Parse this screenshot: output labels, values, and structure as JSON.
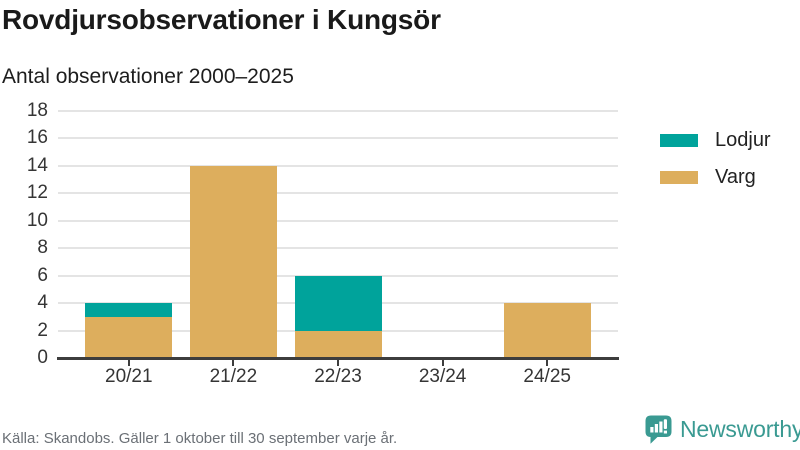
{
  "header": {
    "title": "Rovdjursobservationer i Kungsör",
    "subtitle": "Antal observationer 2000–2025"
  },
  "chart_data": {
    "type": "bar",
    "stacked": true,
    "title": "Rovdjursobservationer i Kungsör",
    "subtitle": "Antal observationer 2000–2025",
    "xlabel": "",
    "ylabel": "",
    "categories": [
      "20/21",
      "21/22",
      "22/23",
      "23/24",
      "24/25"
    ],
    "series": [
      {
        "name": "Varg",
        "color": "#ddae5d",
        "values": [
          3,
          14,
          2,
          0,
          4
        ]
      },
      {
        "name": "Lodjur",
        "color": "#00a39b",
        "values": [
          1,
          0,
          4,
          0,
          0
        ]
      }
    ],
    "totals": [
      4,
      14,
      6,
      0,
      4
    ],
    "ylim": [
      0,
      18
    ],
    "ytick_step": 2,
    "yticks": [
      0,
      2,
      4,
      6,
      8,
      10,
      12,
      14,
      16,
      18
    ],
    "grid": true,
    "legend_position": "right",
    "legend_order": [
      "Lodjur",
      "Varg"
    ]
  },
  "legend": {
    "items": [
      {
        "label": "Lodjur",
        "color": "#00a39b"
      },
      {
        "label": "Varg",
        "color": "#ddae5d"
      }
    ]
  },
  "footer": {
    "source": "Källa: Skandobs. Gäller 1 oktober till 30 september varje år."
  },
  "logo": {
    "brand": "Newsworthy",
    "color": "#3a9a92"
  },
  "colors": {
    "lodjur": "#00a39b",
    "varg": "#ddae5d",
    "brand": "#3a9a92",
    "gridline": "#e4e4e4",
    "axis": "#3d3d3d",
    "text_dark": "#1a1a1a",
    "text_muted": "#6b7076",
    "background": "#ffffff"
  }
}
